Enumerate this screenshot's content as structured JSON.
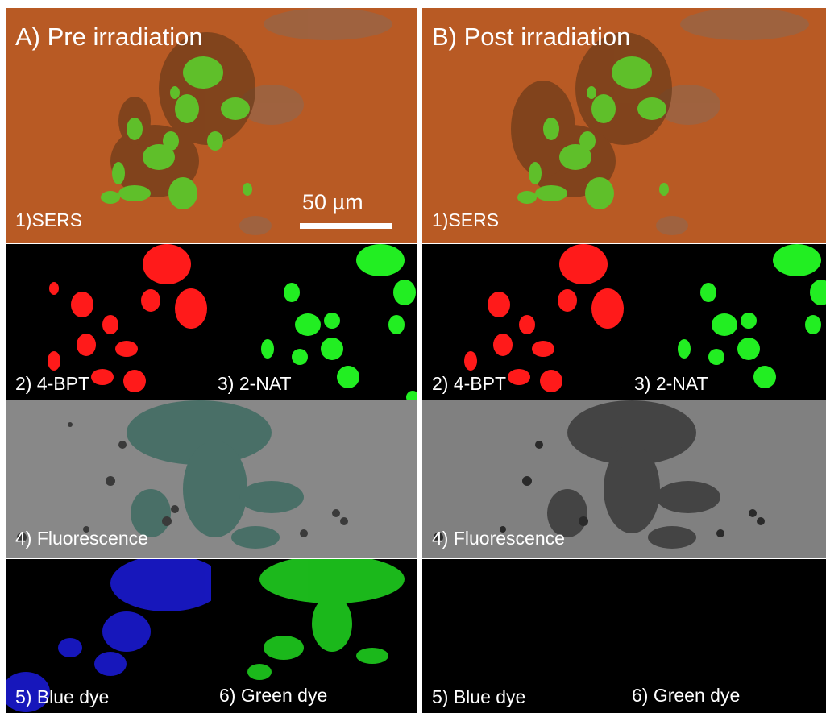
{
  "columns": [
    {
      "title": "A) Pre irradiation",
      "panels": {
        "sers": "1)SERS",
        "bpt": "2) 4-BPT",
        "nat": "3) 2-NAT",
        "fluorescence": "4) Fluorescence",
        "blue_dye": "5) Blue dye",
        "green_dye": "6) Green dye"
      },
      "scale_bar": "50 µm"
    },
    {
      "title": "B) Post irradiation",
      "panels": {
        "sers": "1)SERS",
        "bpt": "2) 4-BPT",
        "nat": "3) 2-NAT",
        "fluorescence": "4) Fluorescence",
        "blue_dye": "5) Blue dye",
        "green_dye": "6) Green dye"
      }
    }
  ],
  "colors": {
    "sers_background": "#b85a24",
    "sers_green": "#5fbf2a",
    "bpt_red": "#ff1a1a",
    "nat_green": "#22ee22",
    "fluorescence_gray": "#6e6e6e",
    "blue_dye": "#1a1ad0",
    "green_dye": "#1fcc1f"
  }
}
